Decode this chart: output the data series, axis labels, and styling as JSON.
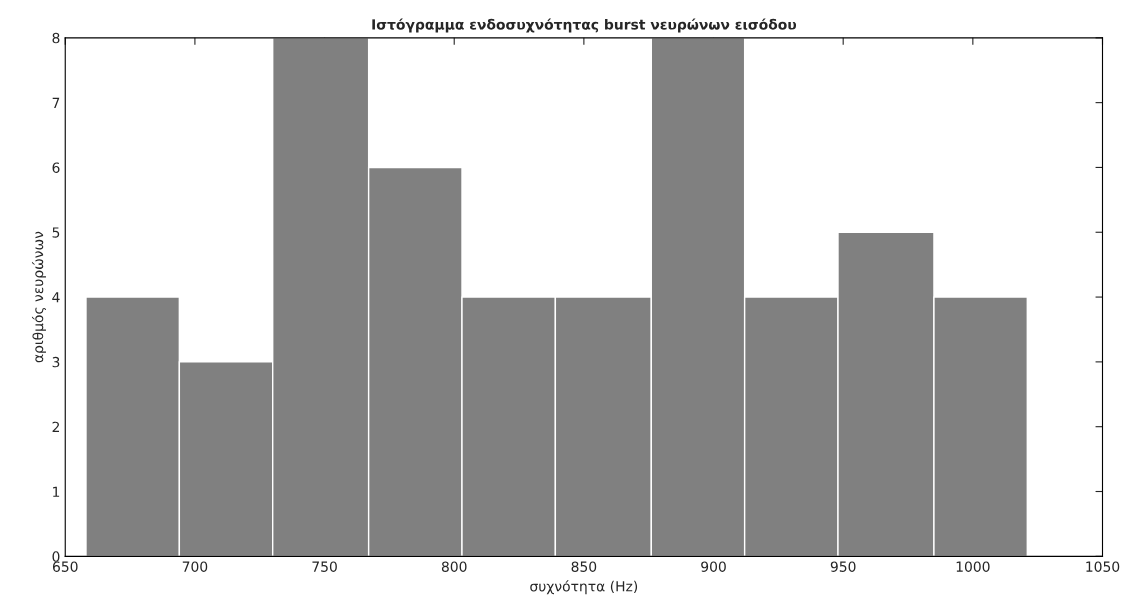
{
  "chart_data": {
    "type": "histogram",
    "title": "Ιστόγραμμα ενδοσυχνότητας burst νευρώνων εισόδου",
    "xlabel": "συχνότητα (Hz)",
    "ylabel": "αριθμός νευρώνων",
    "bins": [
      658,
      694,
      730,
      767,
      803,
      839,
      876,
      912,
      948,
      985,
      1021
    ],
    "values": [
      4,
      3,
      8,
      6,
      4,
      4,
      8,
      4,
      5,
      4
    ],
    "color": "#808080",
    "xlim": [
      650,
      1050
    ],
    "xticks": [
      650,
      700,
      750,
      800,
      850,
      900,
      950,
      1000,
      1050
    ],
    "ylim": [
      0,
      8
    ],
    "yticks": [
      0,
      1,
      2,
      3,
      4,
      5,
      6,
      7,
      8
    ],
    "grid": false
  }
}
